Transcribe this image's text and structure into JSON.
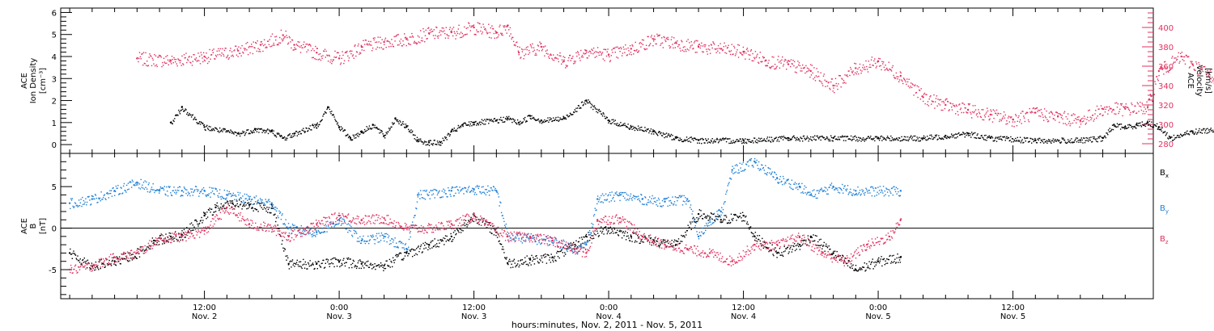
{
  "chart_data": [
    {
      "type": "scatter",
      "panel": "top",
      "ylabel": [
        "ACE",
        "Ion Density",
        "[cm⁻³]"
      ],
      "y2label": [
        "ACE",
        "Velocity",
        "[km/s]"
      ],
      "ylim": [
        -0.4,
        6.2
      ],
      "ylim_right": [
        270,
        420
      ],
      "y_ticks": [
        "0",
        "1",
        "2",
        "3",
        "4",
        "5",
        "6"
      ],
      "y2_ticks": [
        "280",
        "300",
        "320",
        "340",
        "360",
        "380",
        "400"
      ],
      "grid": false,
      "colors": {
        "density": "#000000",
        "velocity": "#e0305f"
      },
      "series": [
        {
          "axis": "left",
          "color": "#000000",
          "values": [
            [
              3,
              1.0
            ],
            [
              4,
              1.7
            ],
            [
              6,
              0.8
            ],
            [
              9,
              0.5
            ],
            [
              10.5,
              0.7
            ],
            [
              12,
              0.6
            ],
            [
              13,
              0.3
            ],
            [
              14,
              0.5
            ],
            [
              16,
              0.9
            ],
            [
              17,
              1.7
            ],
            [
              18,
              0.8
            ],
            [
              19,
              0.3
            ],
            [
              20,
              0.6
            ],
            [
              21,
              0.9
            ],
            [
              22,
              0.4
            ],
            [
              23,
              1.2
            ],
            [
              24,
              0.8
            ],
            [
              25,
              0.2
            ],
            [
              26,
              0.1
            ],
            [
              27,
              0.1
            ],
            [
              28,
              0.6
            ],
            [
              29,
              0.9
            ],
            [
              30,
              1.0
            ],
            [
              32,
              1.1
            ],
            [
              33,
              1.2
            ],
            [
              34,
              1.0
            ],
            [
              35,
              1.3
            ],
            [
              36,
              1.1
            ],
            [
              38,
              1.2
            ],
            [
              40,
              2.0
            ],
            [
              42,
              1.1
            ],
            [
              44,
              0.8
            ],
            [
              46,
              0.6
            ],
            [
              48,
              0.3
            ],
            [
              50,
              0.2
            ],
            [
              54,
              0.2
            ],
            [
              58,
              0.3
            ],
            [
              62,
              0.3
            ],
            [
              66,
              0.3
            ],
            [
              70,
              0.3
            ],
            [
              72,
              0.4
            ],
            [
              74,
              0.5
            ],
            [
              76,
              0.3
            ],
            [
              80,
              0.2
            ],
            [
              84,
              0.2
            ],
            [
              86,
              0.3
            ],
            [
              87,
              0.9
            ],
            [
              88,
              0.8
            ],
            [
              89,
              0.9
            ],
            [
              90,
              1.0
            ],
            [
              91,
              0.8
            ],
            [
              92,
              0.3
            ],
            [
              94,
              0.6
            ],
            [
              96,
              0.7
            ],
            [
              98,
              1.2
            ],
            [
              100,
              0.7
            ],
            [
              101,
              0.5
            ],
            [
              102,
              0.6
            ],
            [
              104,
              0.5
            ]
          ]
        },
        {
          "axis": "right",
          "color": "#e0305f",
          "values": [
            [
              0,
              368
            ],
            [
              3,
              366
            ],
            [
              6,
              370
            ],
            [
              9,
              376
            ],
            [
              11,
              382
            ],
            [
              13,
              392
            ],
            [
              14,
              382
            ],
            [
              16,
              374
            ],
            [
              18,
              368
            ],
            [
              20,
              380
            ],
            [
              22,
              385
            ],
            [
              24,
              388
            ],
            [
              26,
              394
            ],
            [
              28,
              395
            ],
            [
              30,
              400
            ],
            [
              32,
              395
            ],
            [
              33,
              402
            ],
            [
              34,
              374
            ],
            [
              36,
              380
            ],
            [
              38,
              365
            ],
            [
              40,
              376
            ],
            [
              42,
              372
            ],
            [
              44,
              378
            ],
            [
              46,
              388
            ],
            [
              48,
              384
            ],
            [
              50,
              380
            ],
            [
              52,
              378
            ],
            [
              54,
              375
            ],
            [
              56,
              366
            ],
            [
              58,
              362
            ],
            [
              60,
              355
            ],
            [
              62,
              340
            ],
            [
              64,
              358
            ],
            [
              66,
              365
            ],
            [
              68,
              350
            ],
            [
              70,
              328
            ],
            [
              72,
              320
            ],
            [
              74,
              315
            ],
            [
              76,
              310
            ],
            [
              78,
              305
            ],
            [
              80,
              312
            ],
            [
              82,
              308
            ],
            [
              84,
              304
            ],
            [
              86,
              316
            ],
            [
              88,
              316
            ],
            [
              90,
              318
            ],
            [
              91,
              355
            ],
            [
              93,
              370
            ],
            [
              94,
              362
            ],
            [
              96,
              348
            ],
            [
              98,
              335
            ],
            [
              100,
              330
            ],
            [
              101,
              325
            ],
            [
              102,
              285
            ],
            [
              104,
              280
            ]
          ]
        }
      ]
    },
    {
      "type": "scatter",
      "panel": "bottom",
      "ylabel": [
        "ACE",
        "B",
        "[nT]"
      ],
      "ylim": [
        -8.5,
        9.0
      ],
      "y_ticks": [
        "-5",
        "0",
        "5"
      ],
      "zero_line": true,
      "grid": false,
      "x_ticks": [
        {
          "x": 6,
          "time": "12:00",
          "date": "Nov. 2"
        },
        {
          "x": 18,
          "time": "0:00",
          "date": "Nov. 3"
        },
        {
          "x": 30,
          "time": "12:00",
          "date": "Nov. 3"
        },
        {
          "x": 42,
          "time": "0:00",
          "date": "Nov. 4"
        },
        {
          "x": 54,
          "time": "12:00",
          "date": "Nov. 4"
        },
        {
          "x": 66,
          "time": "0:00",
          "date": "Nov. 5"
        },
        {
          "x": 78,
          "time": "12:00",
          "date": "Nov. 5"
        }
      ],
      "xlabel": "hours:minutes, Nov.  2, 2011 - Nov.  5, 2011",
      "legend_placement": "right",
      "series": [
        {
          "name": "Bx",
          "base": "B",
          "sub": "x",
          "color": "#000000",
          "values": [
            [
              -6,
              -3
            ],
            [
              -4,
              -4.5
            ],
            [
              -2,
              -4
            ],
            [
              0,
              -3
            ],
            [
              1.5,
              -1.5
            ],
            [
              3,
              -1
            ],
            [
              4,
              -0.8
            ],
            [
              6,
              1.5
            ],
            [
              7,
              2.5
            ],
            [
              8.5,
              3
            ],
            [
              10,
              2.8
            ],
            [
              12,
              2.4
            ],
            [
              13.5,
              -4.3
            ],
            [
              16,
              -4.3
            ],
            [
              18,
              -4
            ],
            [
              20,
              -4.3
            ],
            [
              22,
              -4.5
            ],
            [
              24,
              -3
            ],
            [
              26,
              -2
            ],
            [
              28,
              -1
            ],
            [
              30,
              1.5
            ],
            [
              31,
              0.5
            ],
            [
              32,
              -0.5
            ],
            [
              33,
              -4.2
            ],
            [
              35,
              -3.8
            ],
            [
              37,
              -3.5
            ],
            [
              39,
              -2
            ],
            [
              40,
              -1
            ],
            [
              42,
              0
            ],
            [
              44,
              -1
            ],
            [
              46,
              -1.5
            ],
            [
              48,
              -2
            ],
            [
              50,
              1.7
            ],
            [
              52,
              1
            ],
            [
              54,
              1.5
            ],
            [
              55,
              -1
            ],
            [
              57,
              -3
            ],
            [
              59,
              -2
            ],
            [
              60,
              -1
            ],
            [
              62,
              -3
            ],
            [
              64,
              -5
            ],
            [
              66,
              -4
            ],
            [
              68,
              -3.5
            ]
          ]
        },
        {
          "name": "By",
          "base": "B",
          "sub": "y",
          "color": "#1f7fd4",
          "values": [
            [
              -6,
              3
            ],
            [
              -4,
              3.5
            ],
            [
              -2,
              4.5
            ],
            [
              0,
              5.5
            ],
            [
              2,
              4.5
            ],
            [
              4,
              4.5
            ],
            [
              6,
              4.5
            ],
            [
              8,
              4
            ],
            [
              10,
              3.5
            ],
            [
              12,
              3
            ],
            [
              13.5,
              0
            ],
            [
              16,
              -0.5
            ],
            [
              18,
              1
            ],
            [
              20,
              -1.5
            ],
            [
              22,
              -1
            ],
            [
              24,
              -2.5
            ],
            [
              25,
              4
            ],
            [
              28,
              4.5
            ],
            [
              30,
              4.7
            ],
            [
              32,
              4.5
            ],
            [
              33,
              -1
            ],
            [
              35,
              -1.2
            ],
            [
              37,
              -1.5
            ],
            [
              39,
              -2.5
            ],
            [
              40,
              -2
            ],
            [
              41,
              3.5
            ],
            [
              43,
              4
            ],
            [
              45,
              3.5
            ],
            [
              47,
              3.2
            ],
            [
              49,
              3.5
            ],
            [
              50,
              -1
            ],
            [
              51,
              1
            ],
            [
              52,
              2
            ],
            [
              53,
              7
            ],
            [
              55,
              8
            ],
            [
              57,
              6
            ],
            [
              59,
              5
            ],
            [
              60,
              4
            ],
            [
              62,
              5
            ],
            [
              64,
              4.5
            ],
            [
              68,
              4.5
            ]
          ]
        },
        {
          "name": "Bz",
          "base": "B",
          "sub": "z",
          "color": "#e0305f",
          "values": [
            [
              -6,
              -5
            ],
            [
              -4,
              -4.5
            ],
            [
              -2,
              -3.5
            ],
            [
              0,
              -3
            ],
            [
              2,
              -1.2
            ],
            [
              4,
              -1
            ],
            [
              6,
              -0.3
            ],
            [
              8,
              2.5
            ],
            [
              10,
              0.5
            ],
            [
              12,
              0
            ],
            [
              13.5,
              -1
            ],
            [
              16,
              0.5
            ],
            [
              18,
              1.5
            ],
            [
              20,
              1
            ],
            [
              22,
              1.2
            ],
            [
              24,
              0
            ],
            [
              26,
              0
            ],
            [
              28,
              0.5
            ],
            [
              30,
              1.5
            ],
            [
              31,
              0.5
            ],
            [
              33,
              -1
            ],
            [
              35,
              -1
            ],
            [
              37,
              -1.5
            ],
            [
              39,
              -2.5
            ],
            [
              40,
              -3
            ],
            [
              41,
              1
            ],
            [
              43,
              1.2
            ],
            [
              45,
              -1
            ],
            [
              47,
              -2
            ],
            [
              49,
              -2.5
            ],
            [
              51,
              -3
            ],
            [
              53,
              -4
            ],
            [
              55,
              -2
            ],
            [
              57,
              -2
            ],
            [
              59,
              -1
            ],
            [
              61,
              -3
            ],
            [
              63,
              -4
            ],
            [
              65,
              -2
            ],
            [
              67,
              -1
            ],
            [
              68,
              1
            ]
          ]
        }
      ]
    }
  ]
}
